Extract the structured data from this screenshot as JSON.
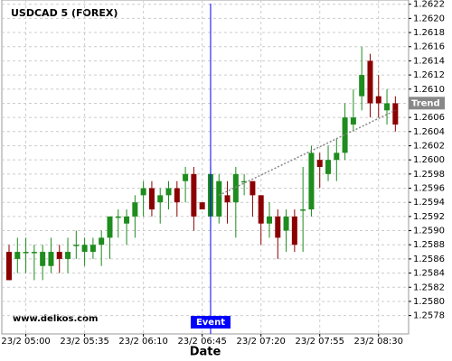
{
  "chart_data": {
    "type": "candlestick",
    "title": "USDCAD 5 (FOREX)",
    "watermark": "www.delkos.com",
    "x_label": "Date",
    "categories": [
      "23/2 04:50",
      "23/2 04:55",
      "23/2 05:00",
      "23/2 05:05",
      "23/2 05:10",
      "23/2 05:15",
      "23/2 05:20",
      "23/2 05:25",
      "23/2 05:30",
      "23/2 05:35",
      "23/2 05:40",
      "23/2 05:45",
      "23/2 05:50",
      "23/2 05:55",
      "23/2 06:00",
      "23/2 06:05",
      "23/2 06:10",
      "23/2 06:15",
      "23/2 06:20",
      "23/2 06:25",
      "23/2 06:30",
      "23/2 06:35",
      "23/2 06:40",
      "23/2 06:45",
      "23/2 06:50",
      "23/2 06:55",
      "23/2 07:00",
      "23/2 07:05",
      "23/2 07:10",
      "23/2 07:15",
      "23/2 07:20",
      "23/2 07:25",
      "23/2 07:30",
      "23/2 07:35",
      "23/2 07:40",
      "23/2 07:45",
      "23/2 07:50",
      "23/2 07:55",
      "23/2 08:00",
      "23/2 08:05",
      "23/2 08:10",
      "23/2 08:15",
      "23/2 08:20",
      "23/2 08:25",
      "23/2 08:30",
      "23/2 08:35",
      "23/2 08:40"
    ],
    "open": [
      1.2587,
      1.2586,
      1.2587,
      1.2587,
      1.2585,
      1.2585,
      1.2587,
      1.2586,
      1.2588,
      1.2587,
      1.2587,
      1.2588,
      1.2589,
      1.2592,
      1.2591,
      1.2592,
      1.2595,
      1.2596,
      1.2594,
      1.2595,
      1.2596,
      1.2597,
      1.2598,
      1.2594,
      1.2592,
      1.2592,
      1.2595,
      1.2594,
      1.2597,
      1.2597,
      1.2595,
      1.2591,
      1.2592,
      1.259,
      1.2592,
      1.2593,
      1.2593,
      1.26,
      1.2598,
      1.26,
      1.2601,
      1.2605,
      1.2609,
      1.2614,
      1.2609,
      1.2607,
      1.2608
    ],
    "high": [
      1.2588,
      1.2589,
      1.2589,
      1.2588,
      1.2588,
      1.2589,
      1.2588,
      1.2589,
      1.259,
      1.2589,
      1.2589,
      1.259,
      1.2592,
      1.2593,
      1.2593,
      1.2595,
      1.2597,
      1.2597,
      1.2596,
      1.2597,
      1.2597,
      1.2599,
      1.2599,
      1.2594,
      1.2599,
      1.2598,
      1.2597,
      1.2599,
      1.2598,
      1.2597,
      1.2595,
      1.2594,
      1.2593,
      1.2593,
      1.2593,
      1.2599,
      1.2602,
      1.2601,
      1.2602,
      1.2603,
      1.2608,
      1.261,
      1.2616,
      1.2615,
      1.2612,
      1.261,
      1.2609
    ],
    "low": [
      1.2583,
      1.2584,
      1.2584,
      1.2583,
      1.2583,
      1.2584,
      1.2584,
      1.2584,
      1.2586,
      1.2585,
      1.2586,
      1.2585,
      1.2586,
      1.2589,
      1.2588,
      1.2589,
      1.2592,
      1.2592,
      1.2591,
      1.2593,
      1.2592,
      1.2594,
      1.259,
      1.2593,
      1.259,
      1.2591,
      1.2591,
      1.2589,
      1.2595,
      1.2592,
      1.2588,
      1.2589,
      1.2586,
      1.2587,
      1.2587,
      1.2587,
      1.2592,
      1.2596,
      1.2597,
      1.2597,
      1.26,
      1.2604,
      1.2607,
      1.2606,
      1.2606,
      1.2605,
      1.2604
    ],
    "close": [
      1.2583,
      1.2587,
      1.2587,
      1.2587,
      1.2587,
      1.2587,
      1.2586,
      1.2587,
      1.2588,
      1.2588,
      1.2588,
      1.2589,
      1.2592,
      1.2592,
      1.2592,
      1.2594,
      1.2596,
      1.2593,
      1.2595,
      1.2596,
      1.2594,
      1.2598,
      1.2592,
      1.2593,
      1.2598,
      1.2597,
      1.2594,
      1.2598,
      1.2597,
      1.2595,
      1.2591,
      1.2592,
      1.2589,
      1.2592,
      1.2588,
      1.2593,
      1.2601,
      1.2599,
      1.26,
      1.2601,
      1.2606,
      1.2606,
      1.2612,
      1.2608,
      1.2608,
      1.2608,
      1.2605
    ],
    "up_color": "#1e8c1e",
    "down_color": "#8b0000",
    "ylim": [
      1.25754,
      1.26226
    ],
    "yticks": [
      1.2578,
      {
        "value": 1.258,
        "label": "1.2580"
      },
      1.2582,
      1.2584,
      1.2586,
      1.2588,
      {
        "value": 1.259,
        "label": "1.2590"
      },
      1.2592,
      1.2594,
      1.2596,
      1.2598,
      {
        "value": 1.26,
        "label": "1.2600"
      },
      1.2602,
      1.2604,
      1.2606,
      1.2608,
      {
        "value": 1.261,
        "label": "1.2610"
      },
      1.2612,
      1.2614,
      1.2616,
      1.2618,
      {
        "value": 1.262,
        "label": "1.2620"
      },
      1.2622
    ],
    "xticks": [
      "23/2 05:00",
      "23/2 05:35",
      "23/2 06:10",
      "23/2 06:45",
      "23/2 07:20",
      "23/2 07:55",
      "23/2 08:30"
    ],
    "grid": true,
    "event": {
      "label": "Event",
      "x": "23/2 06:50",
      "color": "#0000ff"
    },
    "trend": {
      "label": "Trend",
      "x": [
        "23/2 06:55",
        "23/2 08:40"
      ],
      "values": [
        1.2595,
        1.2607
      ],
      "color": "#888888"
    }
  }
}
